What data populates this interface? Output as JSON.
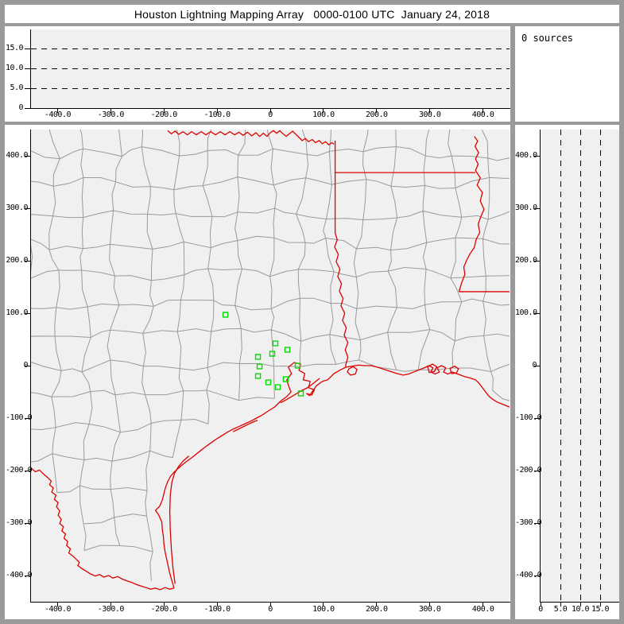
{
  "window": {
    "title": "Houston Lightning Mapping Array   0000-0100 UTC  January 24, 2018"
  },
  "sources_panel": {
    "label": "0 sources"
  },
  "colors": {
    "frame": "#9a9a9a",
    "panel_bg": "#ffffff",
    "plot_bg": "#f0f0f0",
    "axis": "#000000",
    "county_line": "#9a9a9a",
    "state_border": "#dd0000",
    "station_marker": "#00dd00"
  },
  "axes": {
    "distance_tick_values": [
      -400,
      -300,
      -200,
      -100,
      0,
      100,
      200,
      300,
      400
    ],
    "distance_tick_labels": [
      "-400.0",
      "-300.0",
      "-200.0",
      "-100.0",
      "0",
      "100.0",
      "200.0",
      "300.0",
      "400.0"
    ],
    "distance_range": [
      -450,
      450
    ],
    "altitude_tick_values": [
      0,
      5,
      10,
      15
    ],
    "altitude_tick_labels": [
      "0",
      "5.0",
      "10.0",
      "15.0"
    ],
    "altitude_range": [
      0,
      19.8
    ],
    "altitude_gridlines": [
      5,
      10,
      15
    ]
  },
  "chart_data": [
    {
      "type": "scatter",
      "name": "altitude-vs-east-west-panel",
      "x_range": [
        -450,
        450
      ],
      "x_ticks": [
        -400,
        -300,
        -200,
        -100,
        0,
        100,
        200,
        300,
        400
      ],
      "y_range": [
        0,
        19.8
      ],
      "y_ticks": [
        0,
        5,
        10,
        15
      ],
      "gridlines_y": [
        5,
        10,
        15
      ],
      "grid_style": "dashed",
      "points": []
    },
    {
      "type": "scatter",
      "name": "plan-view-map-panel",
      "x_range": [
        -450,
        450
      ],
      "y_range": [
        -450,
        450
      ],
      "x_ticks": [
        -400,
        -300,
        -200,
        -100,
        0,
        100,
        200,
        300,
        400
      ],
      "y_ticks": [
        400,
        300,
        200,
        100,
        0,
        -100,
        -200,
        -300,
        -400
      ],
      "map_layers": [
        "county-boundaries-gray",
        "state-borders-coastline-red"
      ],
      "series": [
        {
          "name": "lma-station-markers",
          "marker": "open-square",
          "color": "#00dd00",
          "points_km": [
            [
              -84.3,
              97.0
            ],
            [
              9.7,
              42.4
            ],
            [
              32.1,
              30.3
            ],
            [
              3.7,
              22.7
            ],
            [
              -23.1,
              16.7
            ],
            [
              -20.1,
              -1.5
            ],
            [
              51.5,
              0.0
            ],
            [
              -23.1,
              -19.7
            ],
            [
              29.1,
              -25.8
            ],
            [
              -3.7,
              -31.8
            ],
            [
              14.2,
              -40.9
            ],
            [
              57.5,
              -53.0
            ]
          ]
        },
        {
          "name": "lightning-sources",
          "count": 0,
          "points_km": []
        }
      ]
    },
    {
      "type": "scatter",
      "name": "altitude-vs-north-south-panel",
      "x_range": [
        0,
        19.8
      ],
      "x_ticks": [
        0,
        5,
        10,
        15
      ],
      "y_range": [
        -450,
        450
      ],
      "y_ticks": [
        400,
        300,
        200,
        100,
        0,
        -100,
        -200,
        -300,
        -400
      ],
      "gridlines_x": [
        5,
        10,
        15
      ],
      "grid_style": "dashed",
      "points": []
    }
  ]
}
